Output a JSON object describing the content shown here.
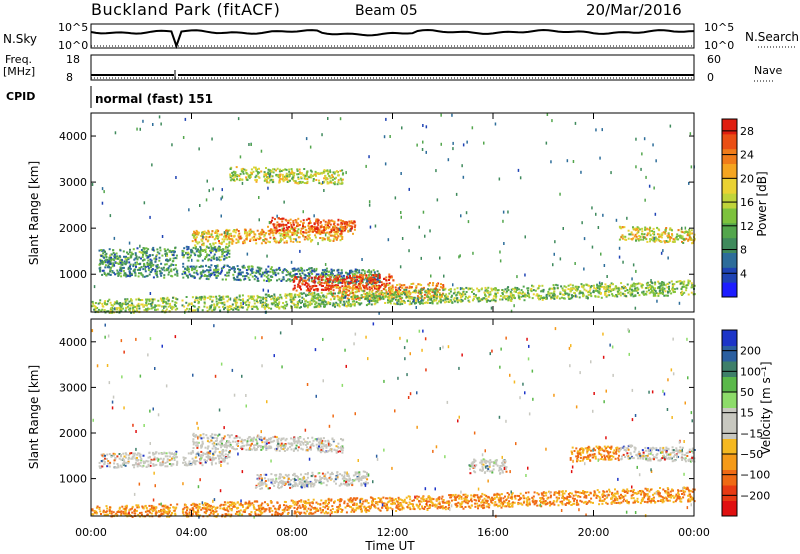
{
  "header": {
    "site": "Buckland Park (fitACF)",
    "beam": "Beam 05",
    "date": "20/Mar/2016"
  },
  "params": {
    "nsky_label": "N.Sky",
    "nsearch_label": "N.Search",
    "nsky_ticks": [
      "10^5",
      "10^0"
    ],
    "nsearch_ticks": [
      "10^5",
      "10^0"
    ],
    "freq_label": "Freq.",
    "freq_unit": "[MHz]",
    "freq_ticks": [
      "18",
      "8"
    ],
    "nave_label": "Nave",
    "nave_ticks": [
      "60",
      "0"
    ],
    "cpid_label": "CPID",
    "cpid_value": "normal (fast) 151"
  },
  "chart_data": [
    {
      "type": "heatmap",
      "panel": "power",
      "ylabel": "Slant Range [km]",
      "xlabel": "Time UT",
      "x_ticks": [
        "00:00",
        "04:00",
        "08:00",
        "12:00",
        "16:00",
        "20:00",
        "00:00"
      ],
      "x_range_hours": [
        0,
        24
      ],
      "ylim": [
        180,
        4500
      ],
      "y_ticks": [
        1000,
        2000,
        3000,
        4000
      ],
      "colorbar": {
        "label": "Power [dB]",
        "ticks": [
          4,
          8,
          12,
          16,
          20,
          24,
          28
        ],
        "range": [
          0,
          30
        ],
        "colors": [
          "#1d1dff",
          "#1e43b4",
          "#2d6d9a",
          "#3f8a5c",
          "#53a64c",
          "#7dc23d",
          "#c0d43a",
          "#ead233",
          "#f5a520",
          "#f07c1a",
          "#ea4f15",
          "#e01e10"
        ]
      },
      "features": [
        {
          "t_start": 0.3,
          "t_end": 5.5,
          "range_km": 1400,
          "power_db": 10
        },
        {
          "t_start": 0.3,
          "t_end": 11.5,
          "range_km": 1150,
          "power_db": 9
        },
        {
          "t_start": 4.0,
          "t_end": 10.0,
          "range_km": 1800,
          "power_db": 20
        },
        {
          "t_start": 7.0,
          "t_end": 10.5,
          "range_km": 2100,
          "power_db": 26
        },
        {
          "t_start": 8.0,
          "t_end": 12.0,
          "range_km": 800,
          "power_db": 28
        },
        {
          "t_start": 5.5,
          "t_end": 10.0,
          "range_km": 3200,
          "power_db": 16
        },
        {
          "t_start": 9.5,
          "t_end": 14.0,
          "range_km": 600,
          "power_db": 22
        },
        {
          "t_start": 21.0,
          "t_end": 24.0,
          "range_km": 1900,
          "power_db": 18
        },
        {
          "t_start": 0.0,
          "t_end": 24.0,
          "range_km": 300,
          "power_db": 14
        }
      ]
    },
    {
      "type": "heatmap",
      "panel": "velocity",
      "ylabel": "Slant Range [km]",
      "xlabel": "Time UT",
      "x_ticks": [
        "00:00",
        "04:00",
        "08:00",
        "12:00",
        "16:00",
        "20:00",
        "00:00"
      ],
      "x_range_hours": [
        0,
        24
      ],
      "ylim": [
        180,
        4500
      ],
      "y_ticks": [
        1000,
        2000,
        3000,
        4000
      ],
      "colorbar": {
        "label": "Velocity [m s⁻¹]",
        "ticks": [
          200,
          100,
          50,
          15,
          -15,
          -50,
          -100,
          -200
        ],
        "colors": [
          "#1d35c8",
          "#2b5fa0",
          "#3e7f6a",
          "#5ab84a",
          "#8ddc6a",
          "#c8c8c0",
          "#c8c8c0",
          "#f5b820",
          "#f59a18",
          "#ef6a14",
          "#e83a12",
          "#e01010"
        ]
      },
      "features": [
        {
          "t_start": 0.3,
          "t_end": 5.5,
          "range_km": 1400,
          "velocity": 0
        },
        {
          "t_start": 4.0,
          "t_end": 10.0,
          "range_km": 1850,
          "velocity": 0
        },
        {
          "t_start": 6.5,
          "t_end": 11.0,
          "range_km": 950,
          "velocity": 0
        },
        {
          "t_start": 15.0,
          "t_end": 16.5,
          "range_km": 1300,
          "velocity": 0
        },
        {
          "t_start": 19.0,
          "t_end": 21.0,
          "range_km": 1550,
          "velocity": -80
        },
        {
          "t_start": 21.0,
          "t_end": 24.0,
          "range_km": 1600,
          "velocity": 0
        },
        {
          "t_start": 0.0,
          "t_end": 24.0,
          "range_km": 250,
          "velocity": -40
        }
      ]
    }
  ]
}
